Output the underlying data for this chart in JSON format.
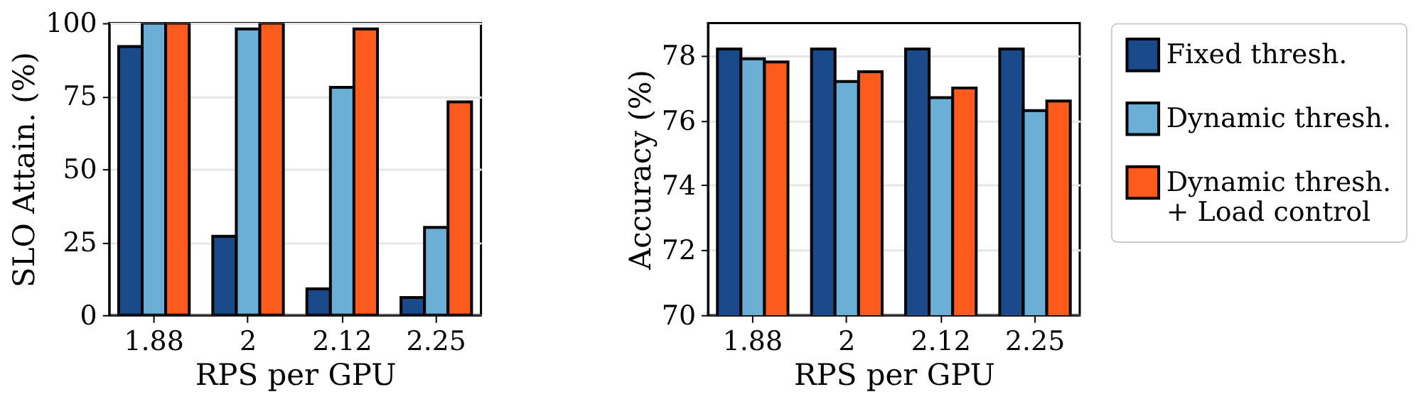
{
  "chart_data": [
    {
      "type": "bar",
      "xlabel": "RPS per GPU",
      "ylabel": "SLO Attain. (%)",
      "categories": [
        "1.88",
        "2",
        "2.12",
        "2.25"
      ],
      "ylim": [
        0,
        100
      ],
      "yticks": [
        0,
        25,
        50,
        75,
        100
      ],
      "grid": "y",
      "series": [
        {
          "color": "#1a4a8a",
          "values": [
            92,
            27,
            9,
            6
          ]
        },
        {
          "color": "#6baed6",
          "values": [
            100,
            98,
            78,
            30
          ]
        },
        {
          "color": "#fd5a1e",
          "values": [
            100,
            100,
            98,
            73
          ]
        }
      ]
    },
    {
      "type": "bar",
      "xlabel": "RPS per GPU",
      "ylabel": "Accuracy (%)",
      "categories": [
        "1.88",
        "2",
        "2.12",
        "2.25"
      ],
      "ylim": [
        70,
        79
      ],
      "yticks": [
        70,
        72,
        74,
        76,
        78
      ],
      "grid": "y",
      "legend": "right",
      "series": [
        {
          "name": "Fixed thresh.",
          "color": "#1a4a8a",
          "values": [
            78.2,
            78.2,
            78.2,
            78.2
          ]
        },
        {
          "name": "Dynamic thresh.",
          "color": "#6baed6",
          "values": [
            77.9,
            77.2,
            76.7,
            76.3
          ]
        },
        {
          "name": "Dynamic thresh.\n+ Load control",
          "color": "#fd5a1e",
          "values": [
            77.8,
            77.5,
            77.0,
            76.6
          ]
        }
      ]
    }
  ]
}
